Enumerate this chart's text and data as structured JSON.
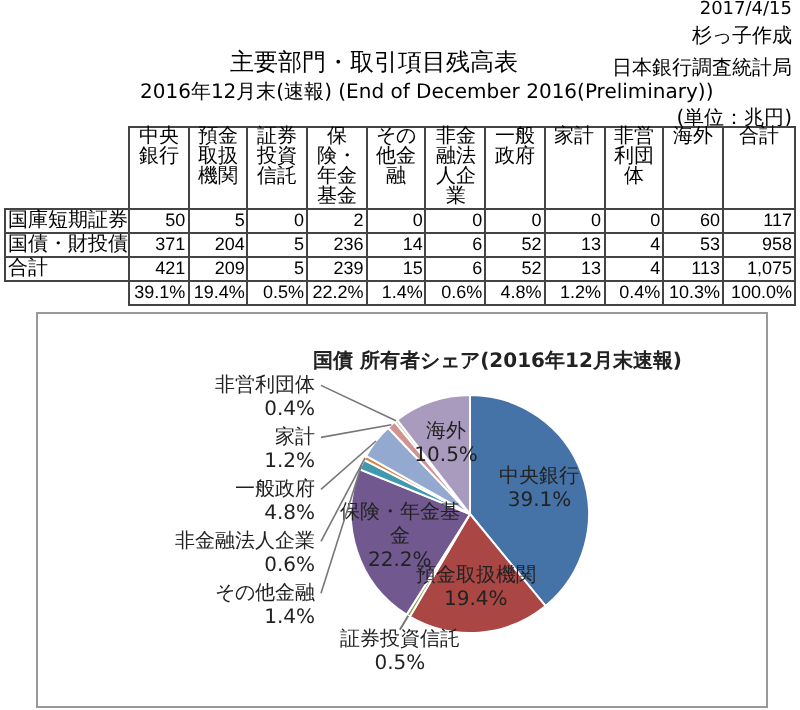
{
  "chart_data": [
    {
      "type": "other",
      "title": "主要部門・取引項目残高表",
      "subtitle": "2016年12月末(速報) (End of December 2016(Preliminary))",
      "annotations": [
        "2017/4/15",
        "杉っ子作成",
        "日本銀行調査統計局",
        "(単位：兆円)"
      ],
      "categories": [
        "中央銀行",
        "預金取扱機関",
        "証券投資信託",
        "保険・年金基金",
        "その他金融",
        "非金融法人企業",
        "一般政府",
        "家計",
        "非営利団体",
        "海外",
        "合計"
      ],
      "y_categories": [
        "国庫短期証券",
        "国債・財投債",
        "合計",
        null
      ],
      "cell_labels": [
        [
          "50",
          "5",
          "0",
          "2",
          "0",
          "0",
          "0",
          "0",
          "0",
          "60",
          "117"
        ],
        [
          "371",
          "204",
          "5",
          "236",
          "14",
          "6",
          "52",
          "13",
          "4",
          "53",
          "958"
        ],
        [
          "421",
          "209",
          "5",
          "239",
          "15",
          "6",
          "52",
          "13",
          "4",
          "113",
          "1,075"
        ],
        [
          "39.1%",
          "19.4%",
          "0.5%",
          "22.2%",
          "1.4%",
          "0.6%",
          "4.8%",
          "1.2%",
          "0.4%",
          "10.3%",
          "100.0%"
        ]
      ]
    },
    {
      "type": "pie",
      "title": "国債 所有者シェア(2016年12月末速報)",
      "categories": [
        "中央銀行",
        "預金取扱機関",
        "証券投資信託",
        "保険・年金基金",
        "その他金融",
        "非金融法人企業",
        "一般政府",
        "家計",
        "非営利団体",
        "海外"
      ],
      "values": [
        39.1,
        19.4,
        0.5,
        22.2,
        1.4,
        0.6,
        4.8,
        1.2,
        0.4,
        10.5
      ],
      "colors": [
        "#4572a7",
        "#aa4643",
        "#89a54e",
        "#71588f",
        "#4198af",
        "#db843d",
        "#93a9cf",
        "#d19392",
        "#b9cd96",
        "#a99bbd"
      ],
      "value_labels": [
        "39.1%",
        "19.4%",
        "0.5%",
        "22.2%",
        "1.4%",
        "0.6%",
        "4.8%",
        "1.2%",
        "0.4%",
        "10.5%"
      ]
    }
  ]
}
